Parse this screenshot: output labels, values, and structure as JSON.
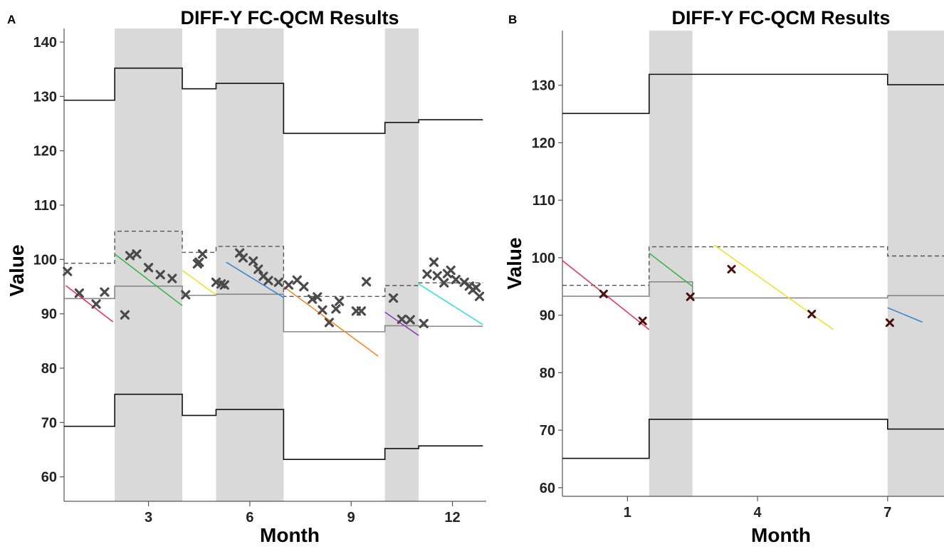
{
  "panels": [
    {
      "letter": "A",
      "title": "DIFF-Y FC-QCM Results",
      "xlabel": "Month",
      "ylabel": "Value",
      "xlim": [
        0.5,
        13.0
      ],
      "ylim": [
        55.5,
        142.5
      ],
      "xticks": [
        3,
        6,
        9,
        12
      ],
      "yticks": [
        60,
        70,
        80,
        90,
        100,
        110,
        120,
        130,
        140
      ],
      "shaded_ranges": [
        [
          2.0,
          4.0
        ],
        [
          5.0,
          7.0
        ],
        [
          10.0,
          11.0
        ]
      ],
      "ucl": [
        {
          "x": [
            0.5,
            2.0
          ],
          "y": 129.3
        },
        {
          "x": [
            2.0,
            4.0
          ],
          "y": 135.2
        },
        {
          "x": [
            4.0,
            5.0
          ],
          "y": 131.4
        },
        {
          "x": [
            5.0,
            7.0
          ],
          "y": 132.4
        },
        {
          "x": [
            7.0,
            10.0
          ],
          "y": 123.2
        },
        {
          "x": [
            10.0,
            11.0
          ],
          "y": 125.2
        },
        {
          "x": [
            11.0,
            12.9
          ],
          "y": 125.7
        }
      ],
      "lcl": [
        {
          "x": [
            0.5,
            2.0
          ],
          "y": 69.3
        },
        {
          "x": [
            2.0,
            4.0
          ],
          "y": 75.2
        },
        {
          "x": [
            4.0,
            5.0
          ],
          "y": 71.3
        },
        {
          "x": [
            5.0,
            7.0
          ],
          "y": 72.4
        },
        {
          "x": [
            7.0,
            10.0
          ],
          "y": 63.2
        },
        {
          "x": [
            10.0,
            11.0
          ],
          "y": 65.2
        },
        {
          "x": [
            11.0,
            12.9
          ],
          "y": 65.7
        }
      ],
      "upper_dashed": [
        {
          "x": [
            0.5,
            2.0
          ],
          "y": 99.3
        },
        {
          "x": [
            2.0,
            4.0
          ],
          "y": 105.2
        },
        {
          "x": [
            4.0,
            5.0
          ],
          "y": 101.3
        },
        {
          "x": [
            5.0,
            7.0
          ],
          "y": 102.4
        },
        {
          "x": [
            7.0,
            10.0
          ],
          "y": 93.2
        },
        {
          "x": [
            10.0,
            11.0
          ],
          "y": 95.2
        },
        {
          "x": [
            11.0,
            12.9
          ],
          "y": 95.7
        }
      ],
      "center": [
        {
          "x": [
            0.5,
            2.0
          ],
          "y": 92.8
        },
        {
          "x": [
            2.0,
            4.0
          ],
          "y": 95.1
        },
        {
          "x": [
            4.0,
            5.0
          ],
          "y": 93.4
        },
        {
          "x": [
            5.0,
            7.0
          ],
          "y": 93.6
        },
        {
          "x": [
            7.0,
            10.0
          ],
          "y": 86.7
        },
        {
          "x": [
            10.0,
            11.0
          ],
          "y": 87.8
        },
        {
          "x": [
            11.0,
            12.9
          ],
          "y": 87.7
        }
      ],
      "trend_lines": [
        {
          "color": "#e8365c",
          "x": [
            0.55,
            1.95
          ],
          "y": [
            95.2,
            88.5
          ]
        },
        {
          "color": "#3cb54a",
          "x": [
            2.0,
            4.0
          ],
          "y": [
            101.0,
            91.5
          ]
        },
        {
          "color": "#f2e02c",
          "x": [
            4.0,
            5.0
          ],
          "y": [
            98.0,
            93.5
          ]
        },
        {
          "color": "#3a86d1",
          "x": [
            5.3,
            7.0
          ],
          "y": [
            99.5,
            93.0
          ]
        },
        {
          "color": "#f08a2a",
          "x": [
            7.0,
            9.8
          ],
          "y": [
            95.0,
            82.2
          ]
        },
        {
          "color": "#8e3fb3",
          "x": [
            10.0,
            11.0
          ],
          "y": [
            90.3,
            86.0
          ]
        },
        {
          "color": "#3fdede",
          "x": [
            11.0,
            12.9
          ],
          "y": [
            95.5,
            88.0
          ]
        }
      ],
      "points": {
        "marker": "x",
        "color": "#4a4a4a",
        "x": [
          0.6,
          0.95,
          1.45,
          1.7,
          2.3,
          2.45,
          2.65,
          3.0,
          3.35,
          3.7,
          4.1,
          4.45,
          4.5,
          4.6,
          5.0,
          5.15,
          5.25,
          5.7,
          5.8,
          6.1,
          6.25,
          6.4,
          6.55,
          6.85,
          7.15,
          7.4,
          7.6,
          7.85,
          8.0,
          8.15,
          8.35,
          8.55,
          8.65,
          9.15,
          9.3,
          9.45,
          10.25,
          10.5,
          10.75,
          11.15,
          11.25,
          11.45,
          11.55,
          11.75,
          11.85,
          11.95,
          12.1,
          12.35,
          12.5,
          12.6,
          12.7,
          12.8
        ],
        "y": [
          97.8,
          93.8,
          91.8,
          94.0,
          89.8,
          100.7,
          101.0,
          98.5,
          97.2,
          96.5,
          93.5,
          99.2,
          99.5,
          101.0,
          95.8,
          95.5,
          95.3,
          101.2,
          100.3,
          99.7,
          98.2,
          96.9,
          96.1,
          95.8,
          95.3,
          96.2,
          95.0,
          92.7,
          93.1,
          90.7,
          88.4,
          90.9,
          92.3,
          90.5,
          90.5,
          95.9,
          92.9,
          89.0,
          88.9,
          88.2,
          97.3,
          99.5,
          97.0,
          95.7,
          97.4,
          98.0,
          96.3,
          95.8,
          95.1,
          94.4,
          94.8,
          93.2
        ]
      }
    },
    {
      "letter": "B",
      "title": "DIFF-Y FC-QCM Results",
      "xlabel": "Month",
      "ylabel": "Value",
      "xlim": [
        -0.5,
        8.3
      ],
      "ylim": [
        58.5,
        139.5
      ],
      "xticks": [
        1,
        4,
        7
      ],
      "yticks": [
        60,
        70,
        80,
        90,
        100,
        110,
        120,
        130
      ],
      "shaded_ranges": [
        [
          1.5,
          2.5
        ],
        [
          7.0,
          8.3
        ]
      ],
      "ucl": [
        {
          "x": [
            -0.5,
            1.5
          ],
          "y": 125.1
        },
        {
          "x": [
            1.5,
            7.0
          ],
          "y": 131.9
        },
        {
          "x": [
            7.0,
            8.3
          ],
          "y": 130.1
        }
      ],
      "lcl": [
        {
          "x": [
            -0.5,
            1.5
          ],
          "y": 65.1
        },
        {
          "x": [
            1.5,
            7.0
          ],
          "y": 71.9
        },
        {
          "x": [
            7.0,
            8.3
          ],
          "y": 70.2
        }
      ],
      "upper_dashed": [
        {
          "x": [
            -0.5,
            1.5
          ],
          "y": 95.2
        },
        {
          "x": [
            1.5,
            7.0
          ],
          "y": 101.9
        },
        {
          "x": [
            7.0,
            8.3
          ],
          "y": 100.3
        }
      ],
      "center": [
        {
          "x": [
            -0.5,
            1.5
          ],
          "y": 93.3
        },
        {
          "x": [
            1.5,
            2.5
          ],
          "y": 95.8
        },
        {
          "x": [
            2.5,
            7.0
          ],
          "y": 93.0
        },
        {
          "x": [
            7.0,
            8.3
          ],
          "y": 93.4
        }
      ],
      "trend_lines": [
        {
          "color": "#e8365c",
          "x": [
            -0.5,
            1.5
          ],
          "y": [
            99.5,
            87.5
          ]
        },
        {
          "color": "#3cb54a",
          "x": [
            1.5,
            2.5
          ],
          "y": [
            100.8,
            95.0
          ]
        },
        {
          "color": "#f2e02c",
          "x": [
            3.0,
            5.75
          ],
          "y": [
            102.2,
            87.5
          ]
        },
        {
          "color": "#3a86d1",
          "x": [
            7.0,
            7.8
          ],
          "y": [
            91.3,
            88.8
          ]
        }
      ],
      "points": {
        "marker": "x",
        "color": "#4a0f0f",
        "x": [
          0.45,
          1.35,
          2.45,
          3.4,
          5.25,
          7.05
        ],
        "y": [
          93.7,
          89.0,
          93.2,
          98.0,
          90.2,
          88.7
        ]
      }
    }
  ]
}
